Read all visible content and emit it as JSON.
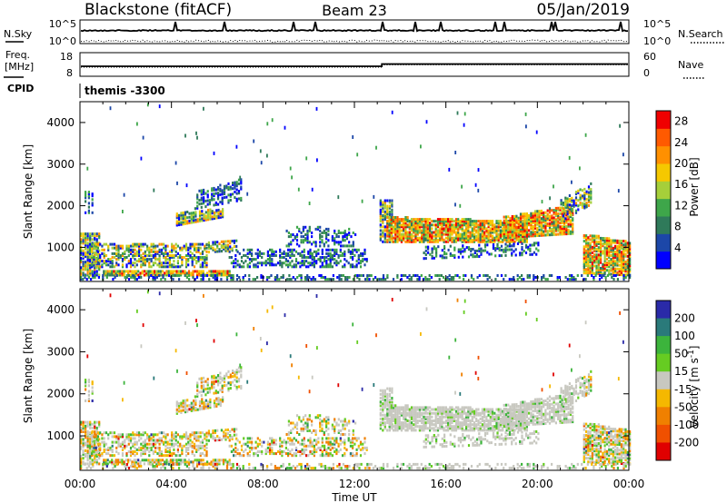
{
  "header": {
    "title_left": "Blackstone (fitACF)",
    "title_center": "Beam 23",
    "title_right": "05/Jan/2019"
  },
  "summary": {
    "nsky_label": "N.Sky",
    "nsky_tick_top": "10^5",
    "nsky_tick_bottom": "10^0",
    "nsearch_label": "N.Search",
    "nsearch_tick_top": "10^5",
    "nsearch_tick_bottom": "10^0",
    "freq_label": "Freq.",
    "freq_unit": "[MHz]",
    "freq_tick_top": "18",
    "freq_tick_bottom": "8",
    "nave_label": "Nave",
    "nave_tick_top": "60",
    "nave_tick_bottom": "0",
    "cpid_label": "CPID",
    "cpid_value": "themis -3300"
  },
  "chart_data": [
    {
      "type": "heatmap",
      "name_hidden": false,
      "ylabel": "Slant Range [km]",
      "xlabel": "",
      "x_ticks": [
        "00:00",
        "04:00",
        "08:00",
        "12:00",
        "16:00",
        "20:00",
        "00:00"
      ],
      "y_ticks": [
        "1000",
        "2000",
        "3000",
        "4000"
      ],
      "ylim": [
        180,
        4500
      ],
      "xlim_hours": [
        0,
        24
      ],
      "colorbar": {
        "label": "Power [dB]",
        "ticks": [
          "4",
          "8",
          "12",
          "16",
          "20",
          "24",
          "28"
        ],
        "range": [
          0,
          30
        ],
        "colors": [
          "#0000ff",
          "#1c47a8",
          "#2f7a5a",
          "#3ea64a",
          "#a6cf3a",
          "#f5c800",
          "#ff9000",
          "#ff5a00",
          "#f00000"
        ]
      }
    },
    {
      "type": "heatmap",
      "ylabel": "Slant Range [km]",
      "xlabel": "Time UT",
      "x_ticks": [
        "00:00",
        "04:00",
        "08:00",
        "12:00",
        "16:00",
        "20:00",
        "00:00"
      ],
      "y_ticks": [
        "1000",
        "2000",
        "3000",
        "4000"
      ],
      "ylim": [
        180,
        4500
      ],
      "xlim_hours": [
        0,
        24
      ],
      "colorbar": {
        "label": "Velocity [m s^-1]",
        "ticks": [
          "200",
          "100",
          "50",
          "15",
          "-15",
          "-50",
          "-100",
          "-200"
        ],
        "colors": [
          "#2a2aa8",
          "#2a7a7a",
          "#3cb43c",
          "#66cc22",
          "#c8c8c0",
          "#f5b800",
          "#f08000",
          "#f05000",
          "#e00000"
        ]
      }
    }
  ]
}
